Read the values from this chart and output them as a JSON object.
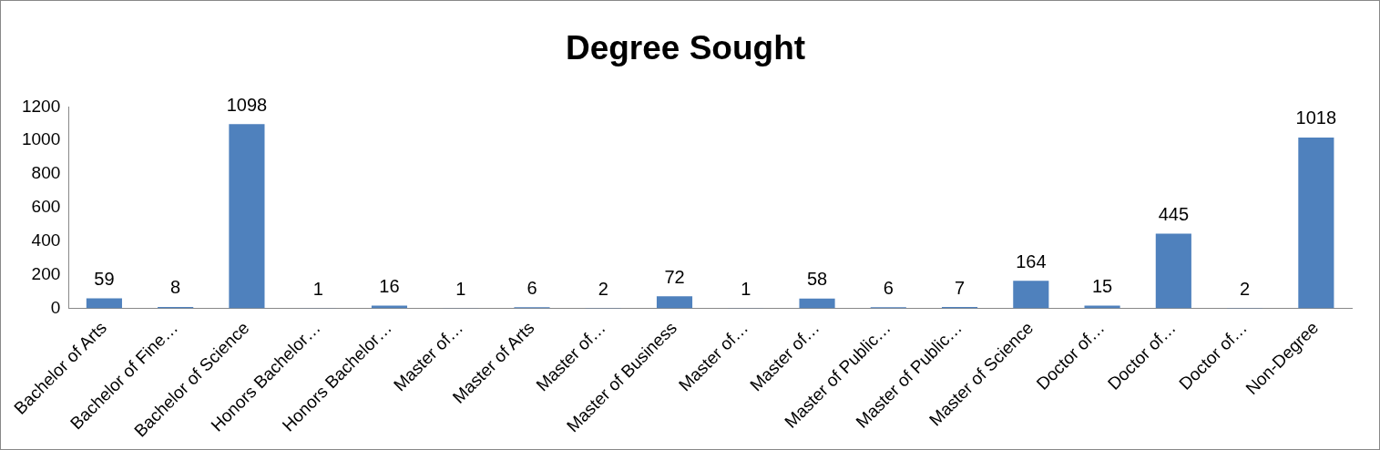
{
  "chart_data": {
    "type": "bar",
    "title": "Degree Sought",
    "categories": [
      "Bachelor of Arts",
      "Bachelor of Fine…",
      "Bachelor of Science",
      "Honors Bachelor…",
      "Honors Bachelor…",
      "Master of…",
      "Master of Arts",
      "Master of…",
      "Master of Business",
      "Master of…",
      "Master of…",
      "Master of Public…",
      "Master of Public…",
      "Master of Science",
      "Doctor of…",
      "Doctor of…",
      "Doctor of…",
      "Non-Degree"
    ],
    "values": [
      59,
      8,
      1098,
      1,
      16,
      1,
      6,
      2,
      72,
      1,
      58,
      6,
      7,
      164,
      15,
      445,
      2,
      1018
    ],
    "color": "#4f81bd",
    "ylim": [
      0,
      1200
    ],
    "yticks": [
      0,
      200,
      400,
      600,
      800,
      1000,
      1200
    ],
    "grid": false,
    "legend": false,
    "data_labels": true
  }
}
